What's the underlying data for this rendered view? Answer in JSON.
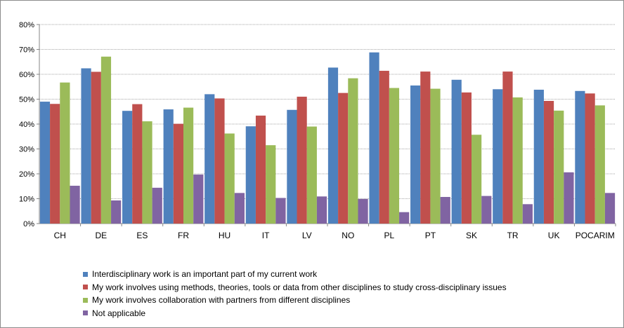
{
  "colors": {
    "series": [
      "#4f81bd",
      "#c0504d",
      "#9bbb59",
      "#8064a2"
    ],
    "gridline": "#a6a6a6",
    "axis": "#868686"
  },
  "chart_data": {
    "type": "bar",
    "title": "",
    "xlabel": "",
    "ylabel": "",
    "ylim": [
      0,
      0.8
    ],
    "yticks": [
      "0%",
      "10%",
      "20%",
      "30%",
      "40%",
      "50%",
      "60%",
      "70%",
      "80%"
    ],
    "grid": true,
    "legend_position": "bottom",
    "categories": [
      "CH",
      "DE",
      "ES",
      "FR",
      "HU",
      "IT",
      "LV",
      "NO",
      "PL",
      "PT",
      "SK",
      "TR",
      "UK",
      "POCARIM"
    ],
    "series": [
      {
        "name": "Interdisciplinary work is an important part of my current work",
        "values": [
          0.49,
          0.624,
          0.453,
          0.459,
          0.52,
          0.391,
          0.457,
          0.627,
          0.688,
          0.555,
          0.578,
          0.54,
          0.538,
          0.533
        ]
      },
      {
        "name": "My work involves using methods, theories, tools or data from other disciplines  to study cross-disciplinary issues",
        "values": [
          0.481,
          0.61,
          0.48,
          0.401,
          0.503,
          0.434,
          0.51,
          0.525,
          0.614,
          0.611,
          0.527,
          0.611,
          0.493,
          0.523
        ]
      },
      {
        "name": "My work involves collaboration with partners from different disciplines",
        "values": [
          0.567,
          0.671,
          0.411,
          0.466,
          0.362,
          0.315,
          0.39,
          0.584,
          0.545,
          0.542,
          0.357,
          0.507,
          0.454,
          0.475
        ]
      },
      {
        "name": "Not applicable",
        "values": [
          0.152,
          0.093,
          0.144,
          0.197,
          0.123,
          0.103,
          0.109,
          0.099,
          0.046,
          0.107,
          0.111,
          0.078,
          0.206,
          0.123
        ]
      }
    ]
  }
}
